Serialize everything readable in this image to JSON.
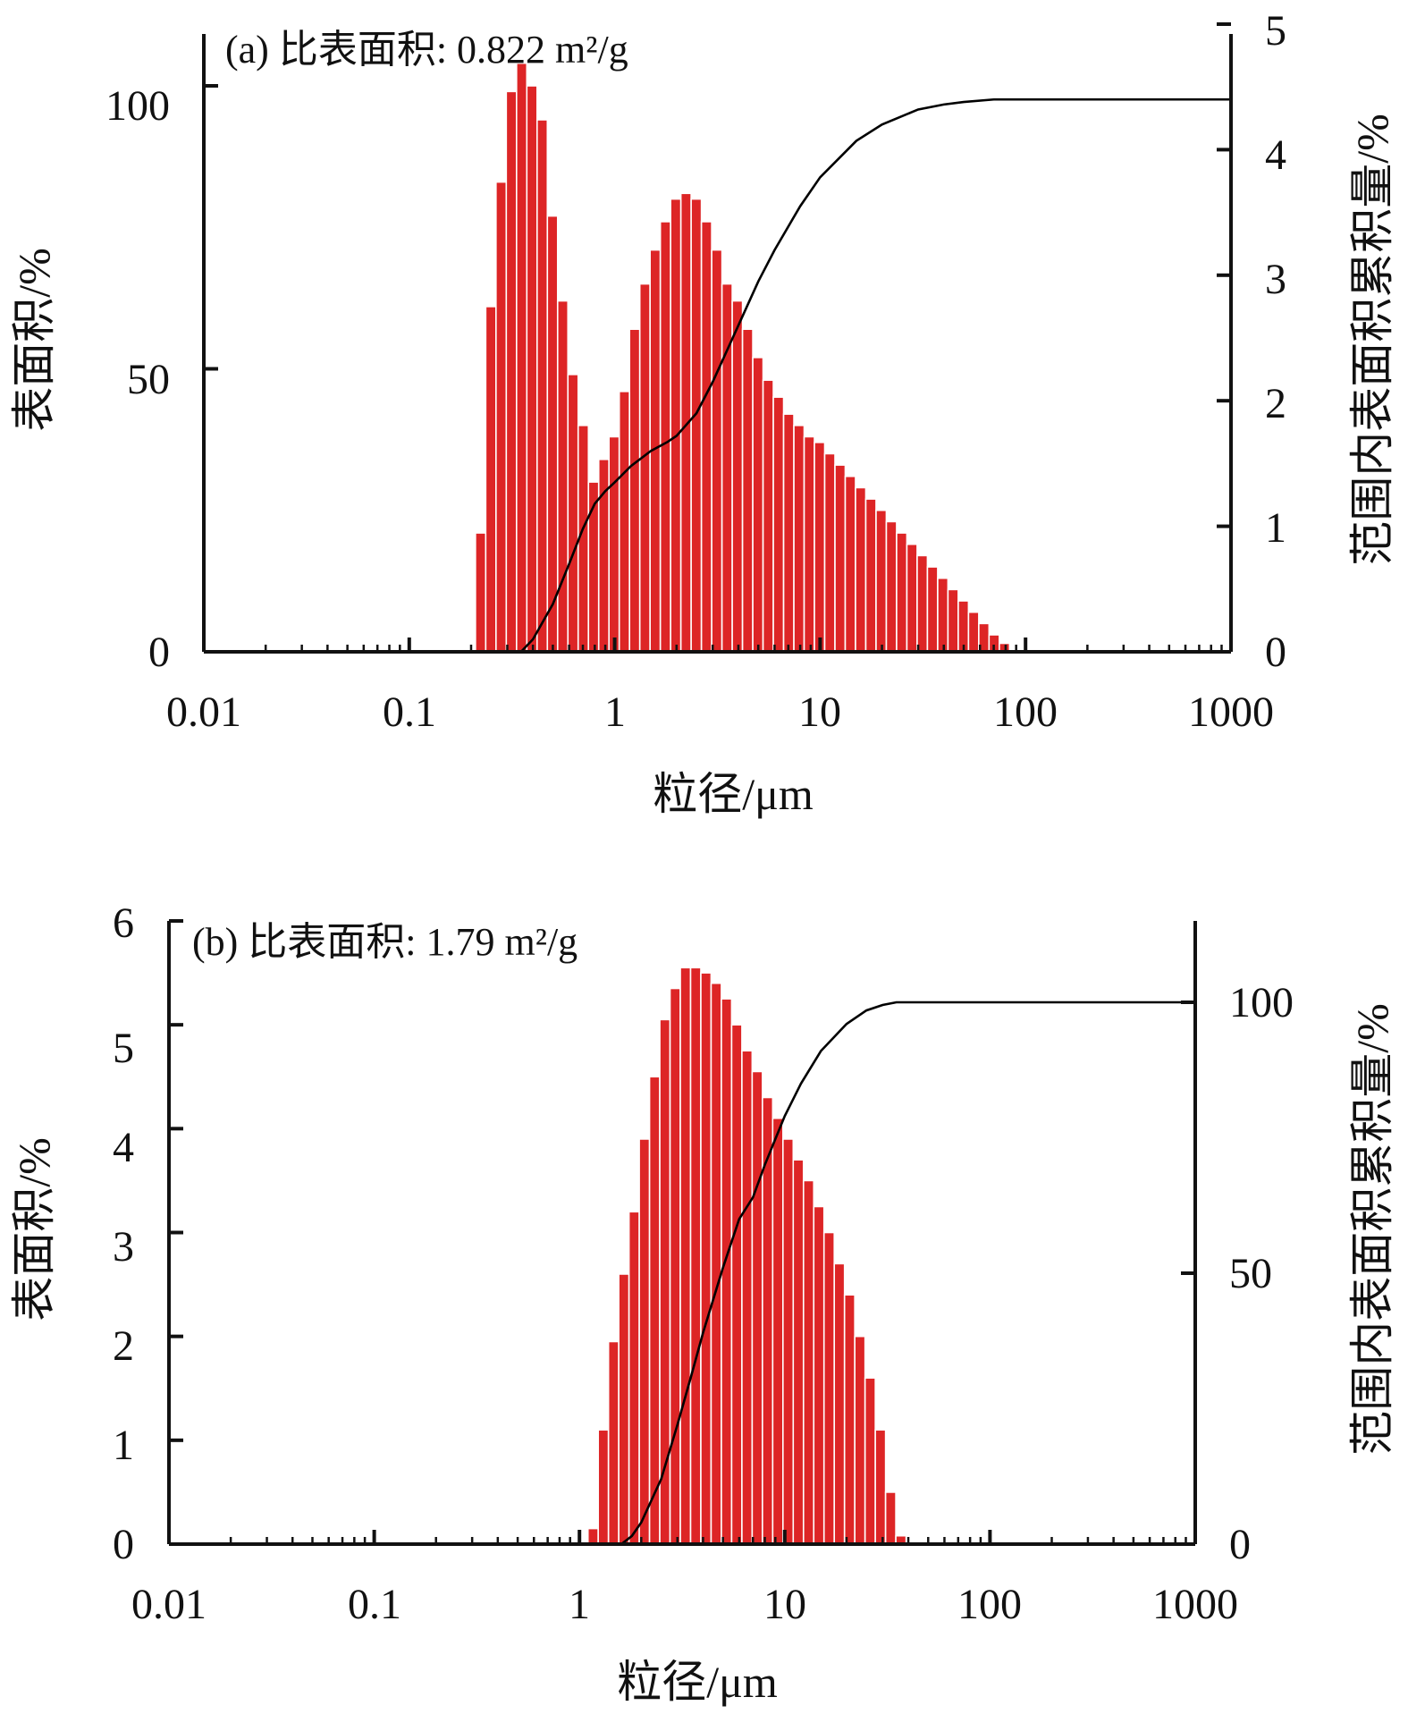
{
  "chart_data": [
    {
      "type": "bar",
      "title": "(a) 比表面积: 0.822 m²/g",
      "xlabel": "粒径/μm",
      "ylabel_left": "表面积/%",
      "ylabel_right": "范围内表面积累积量/%",
      "xscale": "log",
      "xlim": [
        0.01,
        1000
      ],
      "ylim_left": [
        0,
        110
      ],
      "ylim_right": [
        0,
        5
      ],
      "x_tick_labels": [
        "0.01",
        "0.1",
        "1",
        "10",
        "100",
        "1000"
      ],
      "y_left_tick_labels": [
        "0",
        "50",
        "100"
      ],
      "y_right_tick_labels": [
        "0",
        "1",
        "2",
        "3",
        "4",
        "5"
      ],
      "bar_color": "#dd2526",
      "bar_x_start": 0.21,
      "bar_log_step": 0.05,
      "bar_values_left_axis": [
        21,
        61,
        83,
        99,
        104,
        100,
        94,
        77,
        62,
        49,
        40,
        30,
        34,
        38,
        46,
        57,
        65,
        71,
        76,
        80,
        81,
        80,
        76,
        71,
        65,
        62,
        57,
        52,
        48,
        45,
        42,
        40,
        38,
        37,
        35,
        33,
        31,
        29,
        27,
        25,
        23,
        21,
        19,
        17,
        15,
        13,
        11,
        9,
        7,
        5,
        3,
        1.5
      ],
      "cumulative_curve_right_axis": {
        "x": [
          0.35,
          0.4,
          0.5,
          0.6,
          0.7,
          0.8,
          0.9,
          1.0,
          1.2,
          1.5,
          1.8,
          2.0,
          2.5,
          3.0,
          4.0,
          5.0,
          6.0,
          8.0,
          10.0,
          15.0,
          20.0,
          30.0,
          40.0,
          50.0,
          70.0,
          100.0,
          1000.0
        ],
        "y": [
          0.0,
          0.1,
          0.38,
          0.7,
          0.98,
          1.18,
          1.28,
          1.35,
          1.48,
          1.6,
          1.67,
          1.72,
          1.9,
          2.15,
          2.6,
          2.95,
          3.2,
          3.55,
          3.78,
          4.07,
          4.2,
          4.32,
          4.36,
          4.38,
          4.4,
          4.4,
          4.4
        ]
      }
    },
    {
      "type": "bar",
      "title": "(b) 比表面积: 1.79 m²/g",
      "xlabel": "粒径/μm",
      "ylabel_left": "表面积/%",
      "ylabel_right": "范围内表面积累积量/%",
      "xscale": "log",
      "xlim": [
        0.01,
        1000
      ],
      "ylim_left": [
        0,
        6
      ],
      "ylim_right": [
        0,
        110
      ],
      "x_tick_labels": [
        "0.01",
        "0.1",
        "1",
        "10",
        "100",
        "1000"
      ],
      "y_left_tick_labels": [
        "0",
        "1",
        "2",
        "3",
        "4",
        "5",
        "6"
      ],
      "y_right_tick_labels": [
        "0",
        "50",
        "100"
      ],
      "bar_color": "#dd2526",
      "bar_x_start": 1.1,
      "bar_log_step": 0.05,
      "bar_values_left_axis": [
        0.15,
        1.1,
        1.95,
        2.6,
        3.2,
        3.9,
        4.5,
        5.05,
        5.35,
        5.55,
        5.55,
        5.5,
        5.4,
        5.25,
        5.0,
        4.75,
        4.55,
        4.3,
        4.1,
        3.9,
        3.7,
        3.5,
        3.25,
        3.0,
        2.7,
        2.4,
        2.0,
        1.6,
        1.1,
        0.5,
        0.08
      ],
      "cumulative_curve_right_axis": {
        "x": [
          1.6,
          1.8,
          2.0,
          2.5,
          3.0,
          3.5,
          4.0,
          5.0,
          6.0,
          7.0,
          8.0,
          10.0,
          12.0,
          15.0,
          20.0,
          25.0,
          30.0,
          35.0,
          40.0,
          50.0,
          1000.0
        ],
        "y": [
          0.0,
          1.5,
          4.0,
          12.0,
          22.0,
          31.0,
          39.0,
          51.0,
          60.0,
          64.0,
          70.0,
          79.0,
          85.0,
          91.0,
          96.0,
          98.5,
          99.5,
          100.0,
          100.0,
          100.0,
          100.0
        ]
      }
    }
  ]
}
